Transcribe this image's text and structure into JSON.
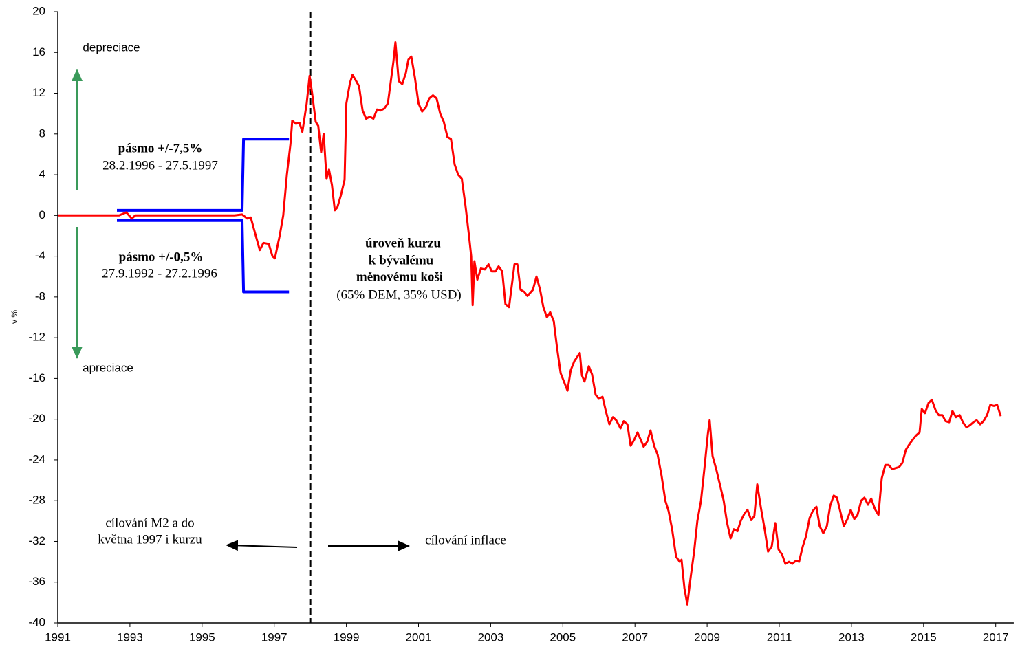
{
  "chart_data": {
    "type": "line",
    "ylabel": "v %",
    "xlim": [
      1991,
      2017.5
    ],
    "ylim": [
      -40,
      20
    ],
    "xticks": [
      1991,
      1993,
      1995,
      1997,
      1999,
      2001,
      2003,
      2005,
      2007,
      2009,
      2011,
      2013,
      2015,
      2017
    ],
    "yticks": [
      20,
      16,
      12,
      8,
      4,
      0,
      -4,
      -8,
      -12,
      -16,
      -20,
      -24,
      -28,
      -32,
      -36,
      -40
    ],
    "vline": 1998,
    "series": [
      {
        "color": "#ff0000",
        "x": [
          1991.0,
          1992.7,
          1992.9,
          1993.05,
          1993.15,
          1995.9,
          1996.11,
          1996.25,
          1996.35,
          1996.45,
          1996.6,
          1996.7,
          1996.85,
          1996.95,
          1997.02,
          1997.15,
          1997.25,
          1997.35,
          1997.45,
          1997.5,
          1997.6,
          1997.7,
          1997.78,
          1997.9,
          1997.98,
          1998.05,
          1998.15,
          1998.22,
          1998.3,
          1998.37,
          1998.45,
          1998.52,
          1998.6,
          1998.68,
          1998.75,
          1998.85,
          1998.95,
          1999.0,
          1999.1,
          1999.17,
          1999.27,
          1999.35,
          1999.45,
          1999.55,
          1999.65,
          1999.75,
          1999.85,
          1999.95,
          2000.05,
          2000.15,
          2000.3,
          2000.36,
          2000.45,
          2000.55,
          2000.65,
          2000.72,
          2000.8,
          2000.9,
          2001.0,
          2001.1,
          2001.2,
          2001.3,
          2001.4,
          2001.5,
          2001.6,
          2001.7,
          2001.8,
          2001.9,
          2002.0,
          2002.1,
          2002.2,
          2002.3,
          2002.4,
          2002.46,
          2002.5,
          2002.55,
          2002.63,
          2002.73,
          2002.84,
          2002.94,
          2003.03,
          2003.13,
          2003.22,
          2003.32,
          2003.41,
          2003.51,
          2003.66,
          2003.74,
          2003.83,
          2003.93,
          2004.02,
          2004.17,
          2004.27,
          2004.37,
          2004.46,
          2004.56,
          2004.65,
          2004.75,
          2004.84,
          2004.94,
          2005.03,
          2005.13,
          2005.22,
          2005.32,
          2005.47,
          2005.53,
          2005.6,
          2005.72,
          2005.81,
          2005.91,
          2006.0,
          2006.1,
          2006.2,
          2006.29,
          2006.39,
          2006.48,
          2006.6,
          2006.69,
          2006.79,
          2006.88,
          2006.98,
          2007.07,
          2007.17,
          2007.24,
          2007.34,
          2007.43,
          2007.53,
          2007.63,
          2007.74,
          2007.84,
          2007.93,
          2008.03,
          2008.14,
          2008.24,
          2008.29,
          2008.37,
          2008.45,
          2008.54,
          2008.64,
          2008.73,
          2008.83,
          2008.92,
          2009.02,
          2009.07,
          2009.15,
          2009.26,
          2009.36,
          2009.46,
          2009.55,
          2009.65,
          2009.74,
          2009.84,
          2009.93,
          2010.03,
          2010.12,
          2010.22,
          2010.31,
          2010.39,
          2010.49,
          2010.6,
          2010.69,
          2010.79,
          2010.89,
          2010.98,
          2011.08,
          2011.17,
          2011.27,
          2011.36,
          2011.46,
          2011.55,
          2011.65,
          2011.74,
          2011.84,
          2011.93,
          2012.03,
          2012.12,
          2012.22,
          2012.32,
          2012.41,
          2012.51,
          2012.6,
          2012.7,
          2012.79,
          2012.89,
          2012.98,
          2013.08,
          2013.17,
          2013.27,
          2013.36,
          2013.46,
          2013.55,
          2013.65,
          2013.75,
          2013.84,
          2013.94,
          2014.03,
          2014.13,
          2014.22,
          2014.32,
          2014.41,
          2014.51,
          2014.6,
          2014.7,
          2014.79,
          2014.89,
          2014.95,
          2015.04,
          2015.14,
          2015.23,
          2015.33,
          2015.42,
          2015.52,
          2015.61,
          2015.71,
          2015.8,
          2015.9,
          2016.0,
          2016.09,
          2016.19,
          2016.28,
          2016.38,
          2016.47,
          2016.57,
          2016.66,
          2016.76,
          2016.85,
          2016.95,
          2017.04,
          2017.14
        ],
        "values": [
          0,
          0,
          0.3,
          -0.3,
          0,
          0,
          0.1,
          -0.3,
          -0.2,
          -1.5,
          -3.4,
          -2.7,
          -2.8,
          -4.0,
          -4.2,
          -2.0,
          0,
          4,
          7,
          9.3,
          9.0,
          9.1,
          8.2,
          11,
          13.7,
          12,
          9.2,
          8.8,
          6.2,
          8.0,
          3.6,
          4.5,
          3.0,
          0.5,
          0.8,
          2.0,
          3.5,
          11,
          13.0,
          13.8,
          13.2,
          12.7,
          10.3,
          9.5,
          9.7,
          9.5,
          10.4,
          10.3,
          10.5,
          11,
          15,
          17.0,
          13.2,
          12.9,
          14,
          15.3,
          15.6,
          13.5,
          11,
          10.2,
          10.6,
          11.5,
          11.8,
          11.5,
          10,
          9.2,
          7.7,
          7.5,
          5,
          4,
          3.6,
          1.0,
          -2,
          -4,
          -8.8,
          -4.5,
          -6.3,
          -5.2,
          -5.3,
          -4.8,
          -5.5,
          -5.5,
          -5.0,
          -5.5,
          -8.7,
          -9.0,
          -4.8,
          -4.8,
          -7.3,
          -7.5,
          -7.9,
          -7.3,
          -6.0,
          -7.3,
          -9.0,
          -10,
          -9.5,
          -10.4,
          -13,
          -15.5,
          -16.3,
          -17.2,
          -15.2,
          -14.3,
          -13.5,
          -15.7,
          -16.3,
          -14.8,
          -15.6,
          -17.6,
          -18.0,
          -17.8,
          -19.3,
          -20.5,
          -19.8,
          -20.1,
          -20.9,
          -20.2,
          -20.5,
          -22.6,
          -22.0,
          -21.3,
          -22.1,
          -22.7,
          -22.2,
          -21.1,
          -22.6,
          -23.5,
          -25.6,
          -28.0,
          -29.0,
          -30.8,
          -33.5,
          -34.0,
          -33.8,
          -36.6,
          -38.2,
          -35.6,
          -33.0,
          -30.0,
          -28.0,
          -25.0,
          -21.5,
          -20.1,
          -23.6,
          -25.0,
          -26.5,
          -28,
          -30.1,
          -31.7,
          -30.8,
          -31.0,
          -30,
          -29.3,
          -28.9,
          -29.9,
          -29.5,
          -26.4,
          -28.7,
          -30.9,
          -33.0,
          -32.5,
          -30.2,
          -32.8,
          -33.3,
          -34.2,
          -34.0,
          -34.2,
          -33.9,
          -34.0,
          -32.5,
          -31.5,
          -29.7,
          -29.0,
          -28.6,
          -30.5,
          -31.2,
          -30.5,
          -28.5,
          -27.5,
          -27.7,
          -29.2,
          -30.5,
          -29.8,
          -28.9,
          -29.8,
          -29.4,
          -28,
          -27.7,
          -28.4,
          -27.8,
          -28.8,
          -29.4,
          -25.8,
          -24.5,
          -24.5,
          -24.9,
          -24.8,
          -24.7,
          -24.3,
          -23.0,
          -22.5,
          -22.0,
          -21.6,
          -21.3,
          -19.0,
          -19.4,
          -18.4,
          -18.1,
          -19.1,
          -19.6,
          -19.6,
          -20.2,
          -20.3,
          -19.2,
          -19.8,
          -19.6,
          -20.3,
          -20.8,
          -20.6,
          -20.3,
          -20.1,
          -20.5,
          -20.2,
          -19.6,
          -18.6,
          -18.7,
          -18.6,
          -19.7
        ]
      },
      {
        "color": "#0000ff",
        "x": [
          1992.64,
          1996.11,
          1996.15,
          1997.41
        ],
        "values": [
          0.5,
          0.5,
          7.5,
          7.5
        ]
      },
      {
        "color": "#0000ff",
        "x": [
          1992.64,
          1996.11,
          1996.15,
          1997.41
        ],
        "values": [
          -0.5,
          -0.5,
          -7.5,
          -7.5
        ]
      }
    ],
    "annotations": [
      "depreciace",
      "apreciace",
      "pásmo +/-7,5%",
      "28.2.1996 - 27.5.1997",
      "pásmo +/-0,5%",
      "27.9.1992 - 27.2.1996",
      "úroveň kurzu",
      "k bývalému",
      "měnovému koši",
      "(65% DEM, 35% USD)",
      "cílování M2 a do",
      "května 1997 i kurzu",
      "cílování inflace"
    ]
  }
}
